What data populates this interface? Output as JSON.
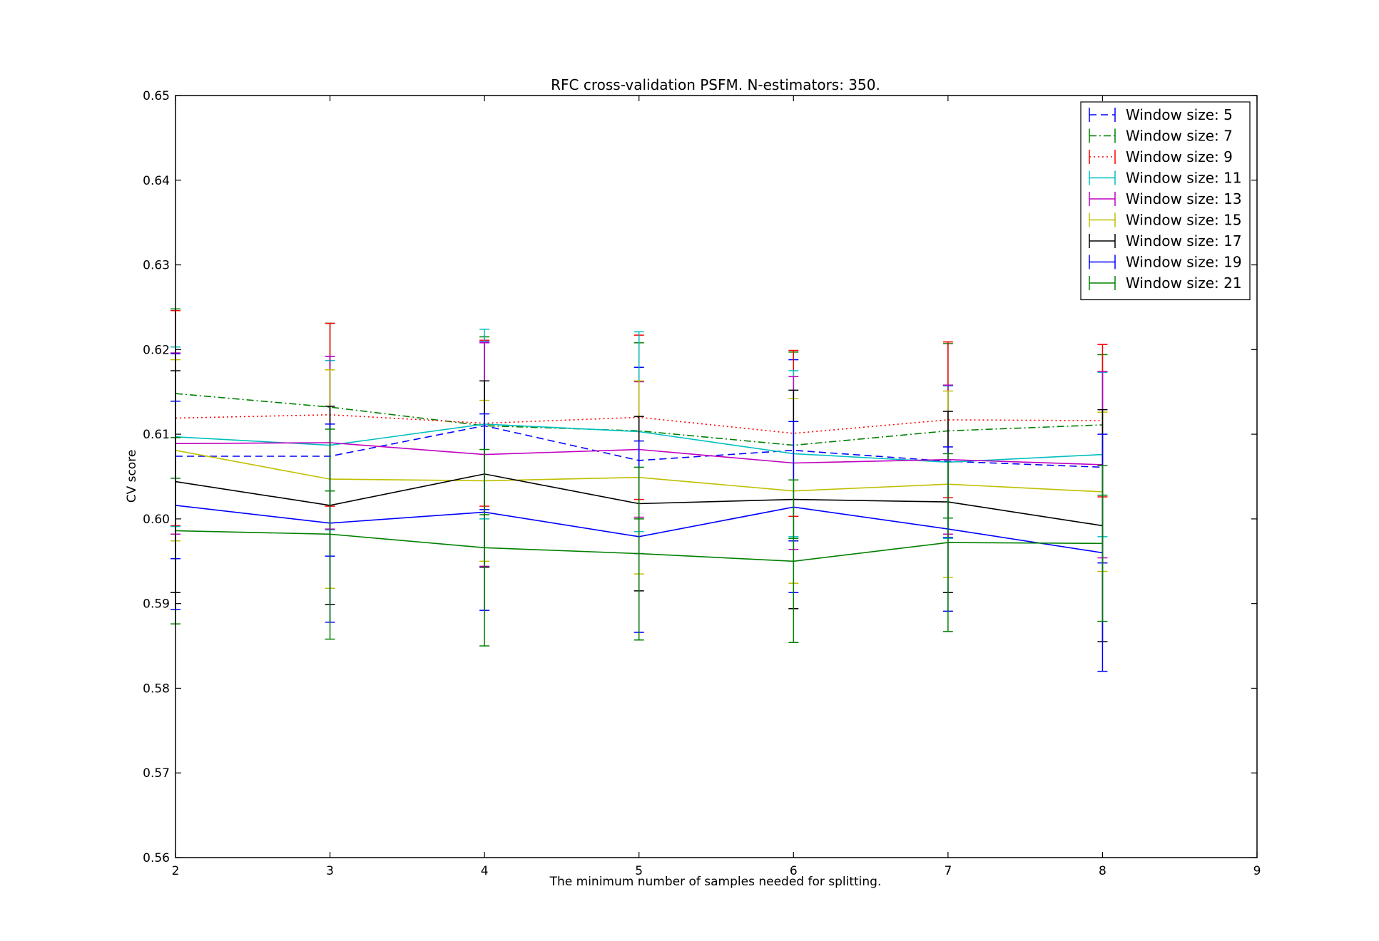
{
  "chart_data": {
    "type": "line",
    "title": "RFC cross-validation PSFM. N-estimators: 350.",
    "xlabel": "The minimum number of samples needed for splitting.",
    "ylabel": "CV score",
    "xlim": [
      2,
      9
    ],
    "ylim": [
      0.56,
      0.65
    ],
    "xticks": [
      "2",
      "3",
      "4",
      "5",
      "6",
      "7",
      "8",
      "9"
    ],
    "yticks": [
      "0.56",
      "0.57",
      "0.58",
      "0.59",
      "0.60",
      "0.61",
      "0.62",
      "0.63",
      "0.64",
      "0.65"
    ],
    "grid": false,
    "legend_position": "top-right",
    "x": [
      2,
      3,
      4,
      5,
      6,
      7,
      8
    ],
    "series": [
      {
        "name": "Window size: 5",
        "color": "#0000ff",
        "dash": "dashed",
        "values": [
          0.6074,
          0.6074,
          0.611,
          0.6069,
          0.6081,
          0.6068,
          0.6061
        ],
        "errors": [
          0.0121,
          0.0118,
          0.0099,
          0.011,
          0.0107,
          0.009,
          0.0113
        ]
      },
      {
        "name": "Window size: 7",
        "color": "#008000",
        "dash": "dashdot",
        "values": [
          0.6148,
          0.6132,
          0.611,
          0.6104,
          0.6087,
          0.6104,
          0.6111
        ],
        "errors": [
          0.01,
          0.0099,
          0.0105,
          0.0104,
          0.011,
          0.0103,
          0.0083
        ]
      },
      {
        "name": "Window size: 9",
        "color": "#ff0000",
        "dash": "dotted",
        "values": [
          0.6119,
          0.6123,
          0.6113,
          0.612,
          0.6101,
          0.6117,
          0.6116
        ],
        "errors": [
          0.0127,
          0.0108,
          0.0098,
          0.0097,
          0.0098,
          0.0092,
          0.009
        ]
      },
      {
        "name": "Window size: 11",
        "color": "#00bfbf",
        "dash": "solid",
        "values": [
          0.6097,
          0.6087,
          0.6112,
          0.6103,
          0.6077,
          0.6067,
          0.6076
        ],
        "errors": [
          0.0106,
          0.01,
          0.0112,
          0.0118,
          0.0098,
          0.009,
          0.0097
        ]
      },
      {
        "name": "Window size: 13",
        "color": "#bf00bf",
        "dash": "solid",
        "values": [
          0.6089,
          0.609,
          0.6076,
          0.6082,
          0.6066,
          0.607,
          0.6064
        ],
        "errors": [
          0.0107,
          0.0102,
          0.0132,
          0.008,
          0.0102,
          0.0088,
          0.011
        ]
      },
      {
        "name": "Window size: 15",
        "color": "#bfbf00",
        "dash": "solid",
        "values": [
          0.6081,
          0.6047,
          0.6045,
          0.6049,
          0.6033,
          0.6041,
          0.6032
        ],
        "errors": [
          0.0107,
          0.0129,
          0.0095,
          0.0114,
          0.0109,
          0.011,
          0.0094
        ]
      },
      {
        "name": "Window size: 17",
        "color": "#000000",
        "dash": "solid",
        "values": [
          0.6044,
          0.6016,
          0.6053,
          0.6018,
          0.6023,
          0.602,
          0.5992
        ],
        "errors": [
          0.0131,
          0.0117,
          0.011,
          0.0103,
          0.0129,
          0.0107,
          0.0137
        ]
      },
      {
        "name": "Window size: 19",
        "color": "#0000ff",
        "dash": "solid",
        "values": [
          0.6016,
          0.5995,
          0.6008,
          0.5979,
          0.6014,
          0.5988,
          0.596
        ],
        "errors": [
          0.0123,
          0.0117,
          0.0116,
          0.0113,
          0.0101,
          0.0097,
          0.014
        ]
      },
      {
        "name": "Window size: 21",
        "color": "#008000",
        "dash": "solid",
        "values": [
          0.5986,
          0.5982,
          0.5966,
          0.5959,
          0.595,
          0.5972,
          0.5971
        ],
        "errors": [
          0.011,
          0.0124,
          0.0116,
          0.0102,
          0.0096,
          0.0105,
          0.0092
        ]
      }
    ]
  }
}
